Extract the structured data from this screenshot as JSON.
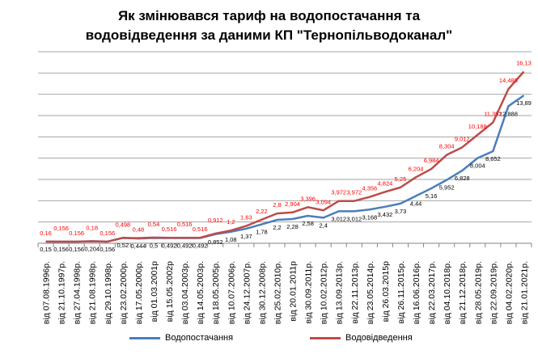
{
  "chart_data": {
    "type": "line",
    "title": "Як змінювався тариф на водопостачання та водовідведення за даними КП \"Тернопільводоканал\"",
    "title_lines": [
      "Як змінювався тариф на водопостачання та",
      "водовідведення за даними КП \"Тернопільводоканал\""
    ],
    "xlabel": "",
    "ylabel": "",
    "ylim": [
      0,
      18
    ],
    "grid": true,
    "legend": "bottom",
    "categories": [
      "від 07.08.1996р.",
      "від 21.10.1997р.",
      "від 27.04.1998р.",
      "від 21.08.1998р.",
      "від 29.10.1998р.",
      "від 23.02.2000р.",
      "від 17.05.2000р.",
      "від 01.03.2001р",
      "від 15.05.2002р",
      "від 03.04.2003р.",
      "від 14.05.2003р.",
      "від 18.05.2005р.",
      "від 10.07.2006р.",
      "від 24.12.2007р.",
      "від 30.12.2008р.",
      "від 25.02.2010р.",
      "від 20.01.2011р",
      "від 30.09.2011р.",
      "від 10.02.2012р.",
      "від 13.09.2013р.",
      "від 22.11.2013р.",
      "від 23.05.2014р.",
      "від 26.03.2015р",
      "від 26.11.2015р.",
      "від 16.06.2016р.",
      "від 22.03.2017р.",
      "від 04.10.2018р.",
      "від 21.12.2018р.",
      "від 28.05.2019р.",
      "від 22.09.2019р.",
      "від 04.02.2020р.",
      "від 21.01.2021р."
    ],
    "series": [
      {
        "name": "Водопостачання",
        "color": "#4a7ebb",
        "values": [
          0.15,
          0.156,
          0.156,
          0.204,
          0.156,
          0.52,
          0.444,
          0.5,
          0.492,
          0.492,
          0.492,
          0.852,
          1.08,
          1.37,
          1.78,
          2.2,
          2.28,
          2.58,
          2.4,
          3.012,
          3.012,
          3.168,
          3.432,
          3.73,
          4.44,
          5.16,
          5.952,
          6.828,
          8.004,
          8.652,
          12.888,
          13.89
        ],
        "labels": [
          "0,15",
          "0,156",
          "0,156",
          "0,204",
          "0,156",
          "0,52",
          "0,444",
          "0,5",
          "0,492",
          "0,492",
          "0,492",
          "0,852",
          "1,08",
          "1,37",
          "1,78",
          "2,2",
          "2,28",
          "2,58",
          "2,4",
          "3,012",
          "3,012",
          "3,168",
          "3,432",
          "3,73",
          "4,44",
          "5,16",
          "5,952",
          "6,828",
          "8,004",
          "8,652",
          "12,888",
          "13,89"
        ],
        "label_color": "#000000"
      },
      {
        "name": "Водовідведення",
        "color": "#be4b48",
        "values": [
          0.16,
          0.156,
          0.156,
          0.18,
          0.156,
          0.498,
          0.48,
          0.54,
          0.516,
          0.516,
          0.516,
          0.912,
          1.2,
          1.63,
          2.22,
          2.8,
          2.904,
          3.396,
          3.094,
          3.972,
          3.972,
          4.356,
          4.824,
          5.25,
          6.204,
          6.984,
          8.304,
          9.012,
          10.188,
          11.352,
          14.488,
          16.13
        ],
        "labels": [
          "0,16",
          "0,156",
          "0,156",
          "0,18",
          "0,156",
          "0,498",
          "0,48",
          "0,54",
          "0,516",
          "0,516",
          "0,516",
          "0,912",
          "1,2",
          "1,63",
          "2,22",
          "2,8",
          "2,904",
          "3,396",
          "3,094",
          "3,972",
          "3,972",
          "4,356",
          "4,824",
          "5,25",
          "6,204",
          "6,984",
          "8,304",
          "9,012",
          "10,188",
          "11,352",
          "14,488",
          "16,13"
        ],
        "label_color": "#ff0000"
      }
    ]
  }
}
